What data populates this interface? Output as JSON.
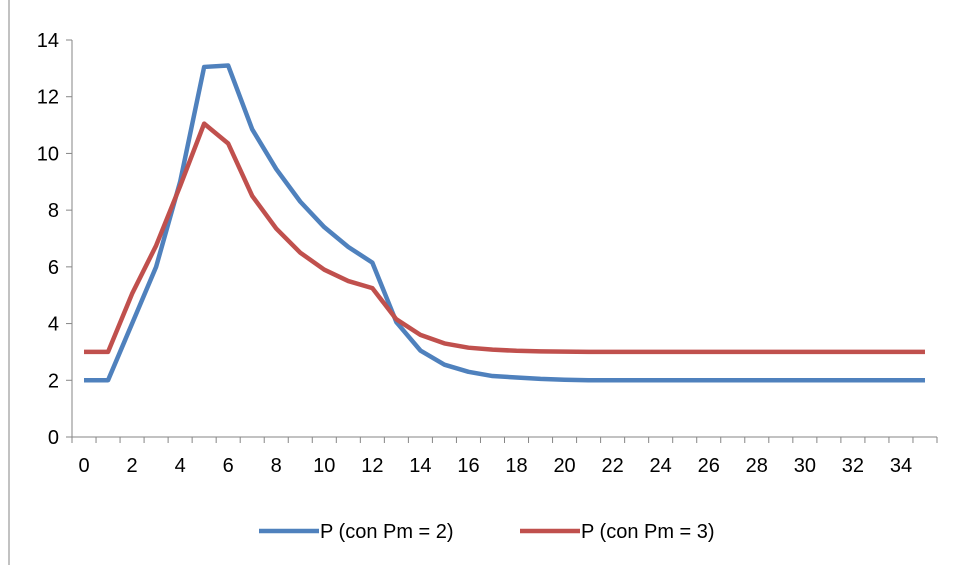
{
  "chart_data": {
    "type": "line",
    "title": "",
    "xlabel": "",
    "ylabel": "",
    "x": [
      0,
      1,
      2,
      3,
      4,
      5,
      6,
      7,
      8,
      9,
      10,
      11,
      12,
      13,
      14,
      15,
      16,
      17,
      18,
      19,
      20,
      21,
      22,
      23,
      24,
      25,
      26,
      27,
      28,
      29,
      30,
      31,
      32,
      33,
      34,
      35
    ],
    "x_tick_labels": [
      "0",
      "2",
      "4",
      "6",
      "8",
      "10",
      "12",
      "14",
      "16",
      "18",
      "20",
      "22",
      "24",
      "26",
      "28",
      "30",
      "32",
      "34"
    ],
    "y_tick_labels": [
      "0",
      "2",
      "4",
      "6",
      "8",
      "10",
      "12",
      "14"
    ],
    "xlim": [
      -0.5,
      35.5
    ],
    "ylim": [
      0,
      14
    ],
    "grid": false,
    "legend_position": "bottom",
    "series": [
      {
        "name": "P (con Pm = 2)",
        "color": "#4f81bd",
        "values": [
          2,
          2,
          4,
          6,
          9,
          13.05,
          13.1,
          10.85,
          9.45,
          8.3,
          7.4,
          6.7,
          6.15,
          4.05,
          3.05,
          2.55,
          2.3,
          2.15,
          2.1,
          2.05,
          2.02,
          2,
          2,
          2,
          2,
          2,
          2,
          2,
          2,
          2,
          2,
          2,
          2,
          2,
          2,
          2
        ]
      },
      {
        "name": "P (con Pm = 3)",
        "color": "#c0504d",
        "values": [
          3,
          3,
          5.05,
          6.75,
          8.85,
          11.05,
          10.35,
          8.5,
          7.35,
          6.5,
          5.9,
          5.5,
          5.25,
          4.15,
          3.6,
          3.3,
          3.15,
          3.08,
          3.04,
          3.02,
          3.01,
          3,
          3,
          3,
          3,
          3,
          3,
          3,
          3,
          3,
          3,
          3,
          3,
          3,
          3,
          3
        ]
      }
    ]
  }
}
